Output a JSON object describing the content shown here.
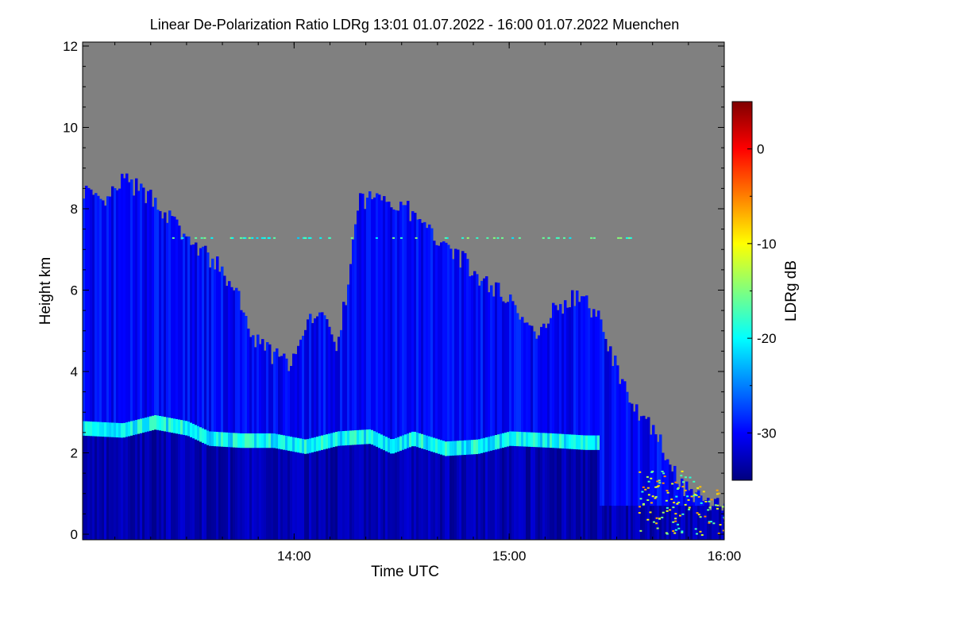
{
  "chart_data": {
    "type": "heatmap",
    "title": "Linear De-Polarization Ratio LDRg   13:01 01.07.2022 - 16:00 01.07.2022 Muenchen",
    "xlabel": "Time UTC",
    "ylabel": "Height km",
    "x_range": [
      "13:01",
      "16:00"
    ],
    "x_ticks": [
      "14:00",
      "15:00",
      "16:00"
    ],
    "ylim": [
      0,
      12
    ],
    "y_ticks": [
      "0",
      "2",
      "4",
      "6",
      "8",
      "10",
      "12"
    ],
    "colorbar": {
      "label": "LDRg dB",
      "range": [
        -35,
        5
      ],
      "ticks": [
        "-30",
        "-20",
        "-10",
        "0"
      ],
      "colors": [
        "#00007f",
        "#0000ff",
        "#007fff",
        "#00ffff",
        "#7fff7f",
        "#ffff00",
        "#ff7f00",
        "#ff0000",
        "#7f0000"
      ]
    },
    "no_data_color": "#808080",
    "layers": {
      "cloud_top_km": [
        [
          13.02,
          8.5
        ],
        [
          13.1,
          8.0
        ],
        [
          13.2,
          8.7
        ],
        [
          13.35,
          8.2
        ],
        [
          13.5,
          7.2
        ],
        [
          13.62,
          6.7
        ],
        [
          13.72,
          6.0
        ],
        [
          13.8,
          4.8
        ],
        [
          13.95,
          4.2
        ],
        [
          14.0,
          4.3
        ],
        [
          14.1,
          5.6
        ],
        [
          14.2,
          4.6
        ],
        [
          14.3,
          8.2
        ],
        [
          14.4,
          8.3
        ],
        [
          14.5,
          8.1
        ],
        [
          14.6,
          7.5
        ],
        [
          14.7,
          7.2
        ],
        [
          14.85,
          6.3
        ],
        [
          15.0,
          5.8
        ],
        [
          15.1,
          4.9
        ],
        [
          15.2,
          5.5
        ],
        [
          15.3,
          5.8
        ],
        [
          15.4,
          5.5
        ],
        [
          15.5,
          4.0
        ],
        [
          15.6,
          3.0
        ],
        [
          15.7,
          2.2
        ],
        [
          15.8,
          1.2
        ],
        [
          15.9,
          0.8
        ],
        [
          16.0,
          0.7
        ]
      ],
      "melting_layer_km": [
        [
          13.02,
          2.6
        ],
        [
          13.2,
          2.55
        ],
        [
          13.35,
          2.75
        ],
        [
          13.5,
          2.6
        ],
        [
          13.6,
          2.35
        ],
        [
          13.75,
          2.3
        ],
        [
          13.9,
          2.3
        ],
        [
          14.05,
          2.15
        ],
        [
          14.2,
          2.35
        ],
        [
          14.35,
          2.4
        ],
        [
          14.45,
          2.15
        ],
        [
          14.55,
          2.35
        ],
        [
          14.7,
          2.1
        ],
        [
          14.85,
          2.15
        ],
        [
          15.0,
          2.35
        ],
        [
          15.2,
          2.3
        ],
        [
          15.35,
          2.25
        ],
        [
          15.42,
          2.25
        ]
      ]
    },
    "value_scale_dB": {
      "ice_cloud": -30,
      "lower_region": -33,
      "melting_layer": -20,
      "noise_speckle": -12
    }
  }
}
